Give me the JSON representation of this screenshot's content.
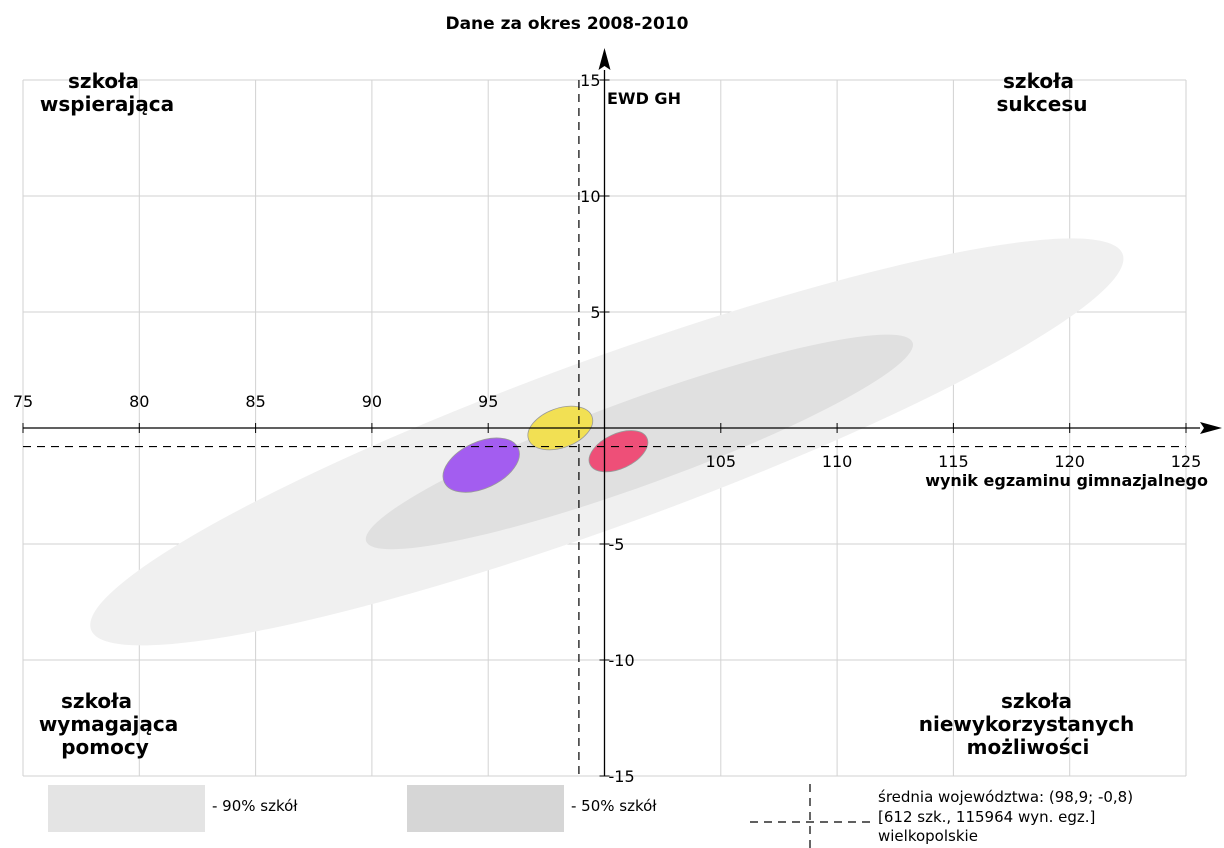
{
  "chart_data": {
    "type": "scatter",
    "title": "Dane za okres 2008-2010",
    "xlabel": "wynik egzaminu gimnazjalnego",
    "ylabel": "EWD GH",
    "xlim": [
      75,
      125
    ],
    "ylim": [
      -15,
      15
    ],
    "x_ticks": [
      75,
      80,
      85,
      90,
      95,
      105,
      110,
      115,
      120,
      125
    ],
    "y_ticks": [
      15,
      10,
      5,
      -5,
      -10,
      -15
    ],
    "grid": true,
    "mean_point": {
      "x": 98.9,
      "y": -0.8
    },
    "quadrant_labels": {
      "top_left": [
        "szkoła",
        "wspierająca"
      ],
      "top_right": [
        "szkoła",
        "sukcesu"
      ],
      "bottom_left": [
        "szkoła",
        "wymagająca",
        "pomocy"
      ],
      "bottom_right": [
        "szkoła",
        "niewykorzystanych",
        "możliwości"
      ]
    },
    "regions": [
      {
        "level": "90%",
        "cx": 100.1,
        "cy": -0.6,
        "rx": 23.6,
        "ry": 3.6,
        "angle_deg": -20,
        "color": "#f0f0f0"
      },
      {
        "level": "50%",
        "cx": 101.5,
        "cy": -0.6,
        "rx": 12.5,
        "ry": 1.85,
        "angle_deg": -20,
        "color": "#e0e0e0"
      }
    ],
    "schools": [
      {
        "cx": 94.7,
        "cy": -1.6,
        "rx": 1.75,
        "ry": 1.0,
        "angle_deg": -25,
        "color": "#a35df0"
      },
      {
        "cx": 98.1,
        "cy": 0.0,
        "rx": 1.45,
        "ry": 0.85,
        "angle_deg": -20,
        "color": "#f2e053"
      },
      {
        "cx": 100.6,
        "cy": -1.0,
        "rx": 1.35,
        "ry": 0.75,
        "angle_deg": -25,
        "color": "#ee4f78"
      }
    ],
    "legend": {
      "items": [
        {
          "label": "- 90% szkół",
          "color": "#e4e4e4"
        },
        {
          "label": "- 50% szkół",
          "color": "#d6d6d6"
        }
      ],
      "mean_lines": [
        "średnia województwa: (98,9; -0,8)",
        "[612 szk., 115964 wyn. egz.]",
        "wielkopolskie"
      ]
    }
  }
}
